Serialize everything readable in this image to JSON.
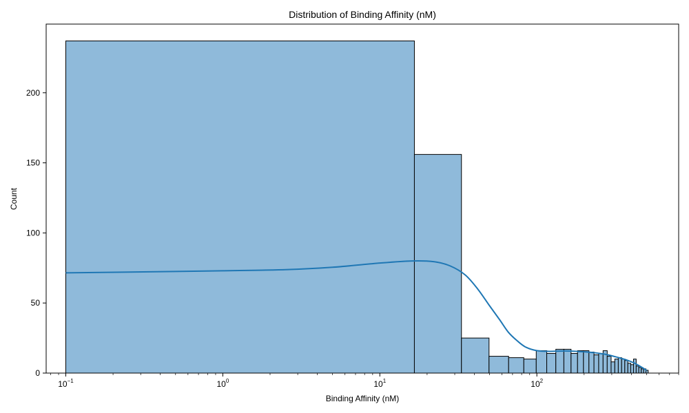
{
  "chart_data": {
    "type": "histogram",
    "title": "Distribution of Binding Affinity (nM)",
    "xlabel": "Binding Affinity (nM)",
    "ylabel": "Count",
    "xscale": "log",
    "xlim": [
      0.075,
      800
    ],
    "ylim": [
      0,
      249
    ],
    "x_ticks": [
      {
        "value": 0.1,
        "base": "10",
        "exp": "−1"
      },
      {
        "value": 1,
        "base": "10",
        "exp": "0"
      },
      {
        "value": 10,
        "base": "10",
        "exp": "1"
      },
      {
        "value": 100,
        "base": "10",
        "exp": "2"
      }
    ],
    "y_ticks": [
      {
        "value": 0,
        "label": "0"
      },
      {
        "value": 50,
        "label": "50"
      },
      {
        "value": 100,
        "label": "100"
      },
      {
        "value": 150,
        "label": "150"
      },
      {
        "value": 200,
        "label": "200"
      }
    ],
    "bins": [
      {
        "x0": 0.1,
        "x1": 16.6,
        "count": 237
      },
      {
        "x0": 16.6,
        "x1": 33.1,
        "count": 156
      },
      {
        "x0": 33.1,
        "x1": 49.6,
        "count": 25
      },
      {
        "x0": 49.6,
        "x1": 66.1,
        "count": 12
      },
      {
        "x0": 66.1,
        "x1": 82.6,
        "count": 11
      },
      {
        "x0": 82.6,
        "x1": 99.1,
        "count": 10
      },
      {
        "x0": 99.1,
        "x1": 115.6,
        "count": 16
      },
      {
        "x0": 115.6,
        "x1": 132.1,
        "count": 14
      },
      {
        "x0": 132.1,
        "x1": 148.6,
        "count": 17
      },
      {
        "x0": 148.6,
        "x1": 165.1,
        "count": 17
      },
      {
        "x0": 165.1,
        "x1": 181.6,
        "count": 14
      },
      {
        "x0": 181.6,
        "x1": 198.1,
        "count": 16
      },
      {
        "x0": 198.1,
        "x1": 214.6,
        "count": 16
      },
      {
        "x0": 214.6,
        "x1": 231.1,
        "count": 15
      },
      {
        "x0": 231.1,
        "x1": 247.6,
        "count": 13
      },
      {
        "x0": 247.6,
        "x1": 264.1,
        "count": 14
      },
      {
        "x0": 264.1,
        "x1": 280.6,
        "count": 16
      },
      {
        "x0": 280.6,
        "x1": 297.1,
        "count": 12
      },
      {
        "x0": 297.1,
        "x1": 313.6,
        "count": 8
      },
      {
        "x0": 313.6,
        "x1": 330.1,
        "count": 10
      },
      {
        "x0": 330.1,
        "x1": 346.6,
        "count": 11
      },
      {
        "x0": 346.6,
        "x1": 363.1,
        "count": 10
      },
      {
        "x0": 363.1,
        "x1": 379.6,
        "count": 9
      },
      {
        "x0": 379.6,
        "x1": 396.1,
        "count": 7
      },
      {
        "x0": 396.1,
        "x1": 412.6,
        "count": 6
      },
      {
        "x0": 412.6,
        "x1": 429.1,
        "count": 10
      },
      {
        "x0": 429.1,
        "x1": 445.6,
        "count": 5
      },
      {
        "x0": 445.6,
        "x1": 462.1,
        "count": 4
      },
      {
        "x0": 462.1,
        "x1": 478.6,
        "count": 3
      },
      {
        "x0": 478.6,
        "x1": 495.1,
        "count": 3
      },
      {
        "x0": 495.1,
        "x1": 511.6,
        "count": 2
      }
    ],
    "kde": [
      {
        "x": 0.1,
        "y": 71.5
      },
      {
        "x": 0.5,
        "y": 72.5
      },
      {
        "x": 1.0,
        "y": 73
      },
      {
        "x": 2.5,
        "y": 73.8
      },
      {
        "x": 5.0,
        "y": 75.5
      },
      {
        "x": 10.0,
        "y": 78.5
      },
      {
        "x": 16.0,
        "y": 80
      },
      {
        "x": 22.0,
        "y": 79.5
      },
      {
        "x": 28.0,
        "y": 76.5
      },
      {
        "x": 35.0,
        "y": 70
      },
      {
        "x": 42.0,
        "y": 60
      },
      {
        "x": 50.0,
        "y": 48
      },
      {
        "x": 58.0,
        "y": 38
      },
      {
        "x": 66.0,
        "y": 29
      },
      {
        "x": 75.0,
        "y": 23
      },
      {
        "x": 85.0,
        "y": 18.5
      },
      {
        "x": 100.0,
        "y": 16
      },
      {
        "x": 120.0,
        "y": 15.5
      },
      {
        "x": 150.0,
        "y": 15.8
      },
      {
        "x": 180.0,
        "y": 15.5
      },
      {
        "x": 220.0,
        "y": 14.8
      },
      {
        "x": 270.0,
        "y": 13.5
      },
      {
        "x": 320.0,
        "y": 11.5
      },
      {
        "x": 370.0,
        "y": 9.5
      },
      {
        "x": 420.0,
        "y": 7
      },
      {
        "x": 460.0,
        "y": 4.5
      },
      {
        "x": 500.0,
        "y": 2
      }
    ],
    "colors": {
      "bar_fill": "#8fbada",
      "bar_edge": "#000000",
      "kde_line": "#1f77b4",
      "axes": "#000000",
      "background": "#ffffff"
    },
    "grid": false,
    "legend": "none"
  }
}
